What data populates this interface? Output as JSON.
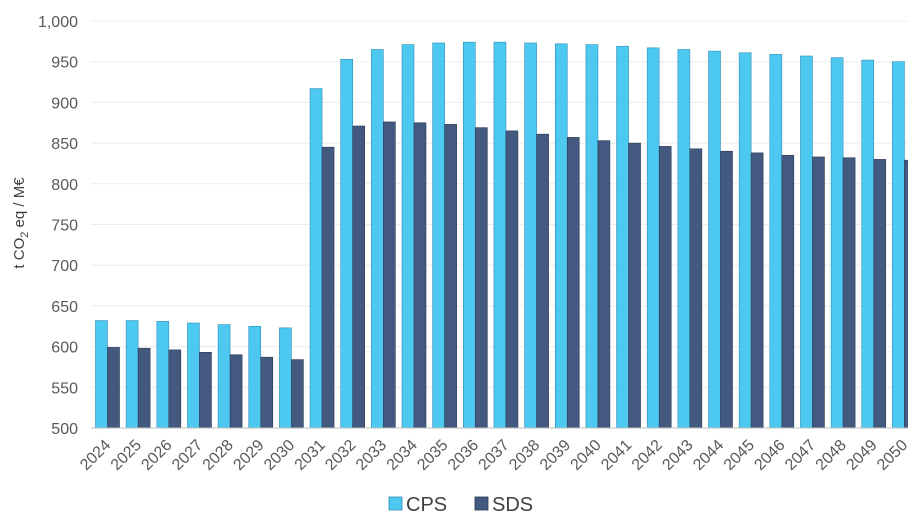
{
  "chart_data": {
    "type": "bar",
    "title": "",
    "xlabel": "",
    "ylabel": "t CO2 eq / M€",
    "ylabel_parts": {
      "pre": "t CO",
      "sub": "2",
      "post": " eq / M€"
    },
    "ylim": [
      500,
      1000
    ],
    "yticks": [
      "500",
      "550",
      "600",
      "650",
      "700",
      "750",
      "800",
      "850",
      "900",
      "950",
      "1,000"
    ],
    "ytick_values": [
      500,
      550,
      600,
      650,
      700,
      750,
      800,
      850,
      900,
      950,
      1000
    ],
    "grid": true,
    "legend_position": "bottom",
    "categories": [
      "2024",
      "2025",
      "2026",
      "2027",
      "2028",
      "2029",
      "2030",
      "2031",
      "2032",
      "2033",
      "2034",
      "2035",
      "2036",
      "2037",
      "2038",
      "2039",
      "2040",
      "2041",
      "2042",
      "2043",
      "2044",
      "2045",
      "2046",
      "2047",
      "2048",
      "2049",
      "2050"
    ],
    "series": [
      {
        "name": "CPS",
        "color": "#4dc8f0",
        "values": [
          632,
          632,
          631,
          629,
          627,
          625,
          623,
          917,
          953,
          965,
          971,
          973,
          974,
          974,
          973,
          972,
          971,
          969,
          967,
          965,
          963,
          961,
          959,
          957,
          955,
          952,
          950
        ]
      },
      {
        "name": "SDS",
        "color": "#44597f",
        "values": [
          599,
          598,
          596,
          593,
          590,
          587,
          584,
          845,
          871,
          876,
          875,
          873,
          869,
          865,
          861,
          857,
          853,
          850,
          846,
          843,
          840,
          838,
          835,
          833,
          832,
          830,
          829
        ]
      }
    ]
  }
}
